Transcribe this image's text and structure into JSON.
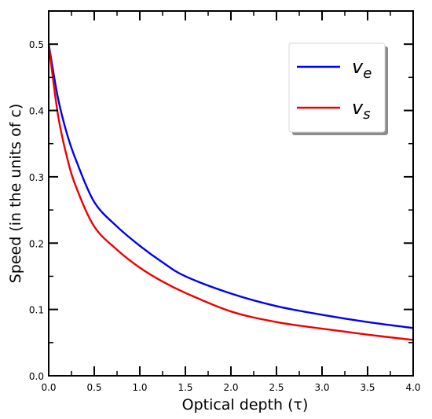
{
  "chart_data": {
    "type": "line",
    "xlabel": "Optical depth (τ)",
    "ylabel": "Speed (in the units of c)",
    "xlim": [
      0.0,
      4.0
    ],
    "ylim": [
      0.0,
      0.55
    ],
    "x_ticks": [
      0.0,
      0.5,
      1.0,
      1.5,
      2.0,
      2.5,
      3.0,
      3.5,
      4.0
    ],
    "x_tick_labels": [
      "0.0",
      "0.5",
      "1.0",
      "1.5",
      "2.0",
      "2.5",
      "3.0",
      "3.5",
      "4.0"
    ],
    "y_ticks": [
      0.0,
      0.1,
      0.2,
      0.3,
      0.4,
      0.5
    ],
    "y_tick_labels": [
      "0.0",
      "0.1",
      "0.2",
      "0.3",
      "0.4",
      "0.5"
    ],
    "legend_position": "top-right",
    "grid": false,
    "x": [
      0.0,
      0.1,
      0.2,
      0.3,
      0.5,
      0.75,
      1.0,
      1.25,
      1.5,
      2.0,
      2.5,
      3.0,
      3.5,
      4.0
    ],
    "series": [
      {
        "name": "v_e",
        "legend_main": "v",
        "legend_sub": "e",
        "color": "#0000ee",
        "values": [
          0.5,
          0.42,
          0.365,
          0.325,
          0.262,
          0.225,
          0.196,
          0.171,
          0.15,
          0.124,
          0.105,
          0.092,
          0.081,
          0.072
        ]
      },
      {
        "name": "v_s",
        "legend_main": "v",
        "legend_sub": "s",
        "color": "#ee0000",
        "values": [
          0.5,
          0.395,
          0.33,
          0.285,
          0.225,
          0.19,
          0.163,
          0.142,
          0.125,
          0.097,
          0.081,
          0.071,
          0.062,
          0.054
        ]
      }
    ]
  }
}
